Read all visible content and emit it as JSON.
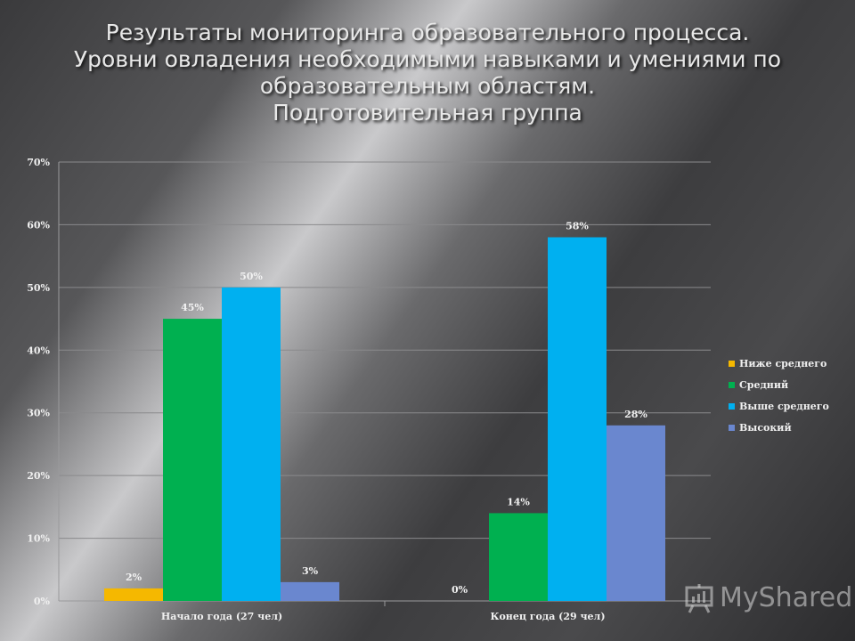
{
  "title_lines": [
    "Результаты мониторинга образовательного процесса.",
    "Уровни  овладения необходимыми навыками и умениями по",
    "образовательным областям.",
    "Подготовительная группа"
  ],
  "watermark": {
    "text": "MyShared",
    "icon": "presentation-board-icon"
  },
  "chart_data": {
    "type": "bar",
    "categories": [
      "Начало года (27 чел)",
      "Конец года (29 чел)"
    ],
    "series": [
      {
        "name": "Ниже среднего",
        "color": "#f5b800",
        "values": [
          2,
          0
        ],
        "labels": [
          "2%",
          "0%"
        ]
      },
      {
        "name": "Средний",
        "color": "#00b050",
        "values": [
          45,
          14
        ],
        "labels": [
          "45%",
          "14%"
        ]
      },
      {
        "name": "Выше среднего",
        "color": "#00b0f0",
        "values": [
          50,
          58
        ],
        "labels": [
          "50%",
          "58%"
        ]
      },
      {
        "name": "Высокий",
        "color": "#6a87cf",
        "values": [
          3,
          28
        ],
        "labels": [
          "3%",
          "28%"
        ]
      }
    ],
    "yticks": [
      "0%",
      "10%",
      "20%",
      "30%",
      "40%",
      "50%",
      "60%",
      "70%"
    ],
    "ylim": [
      0,
      70
    ],
    "grid": true,
    "legend_position": "right"
  }
}
